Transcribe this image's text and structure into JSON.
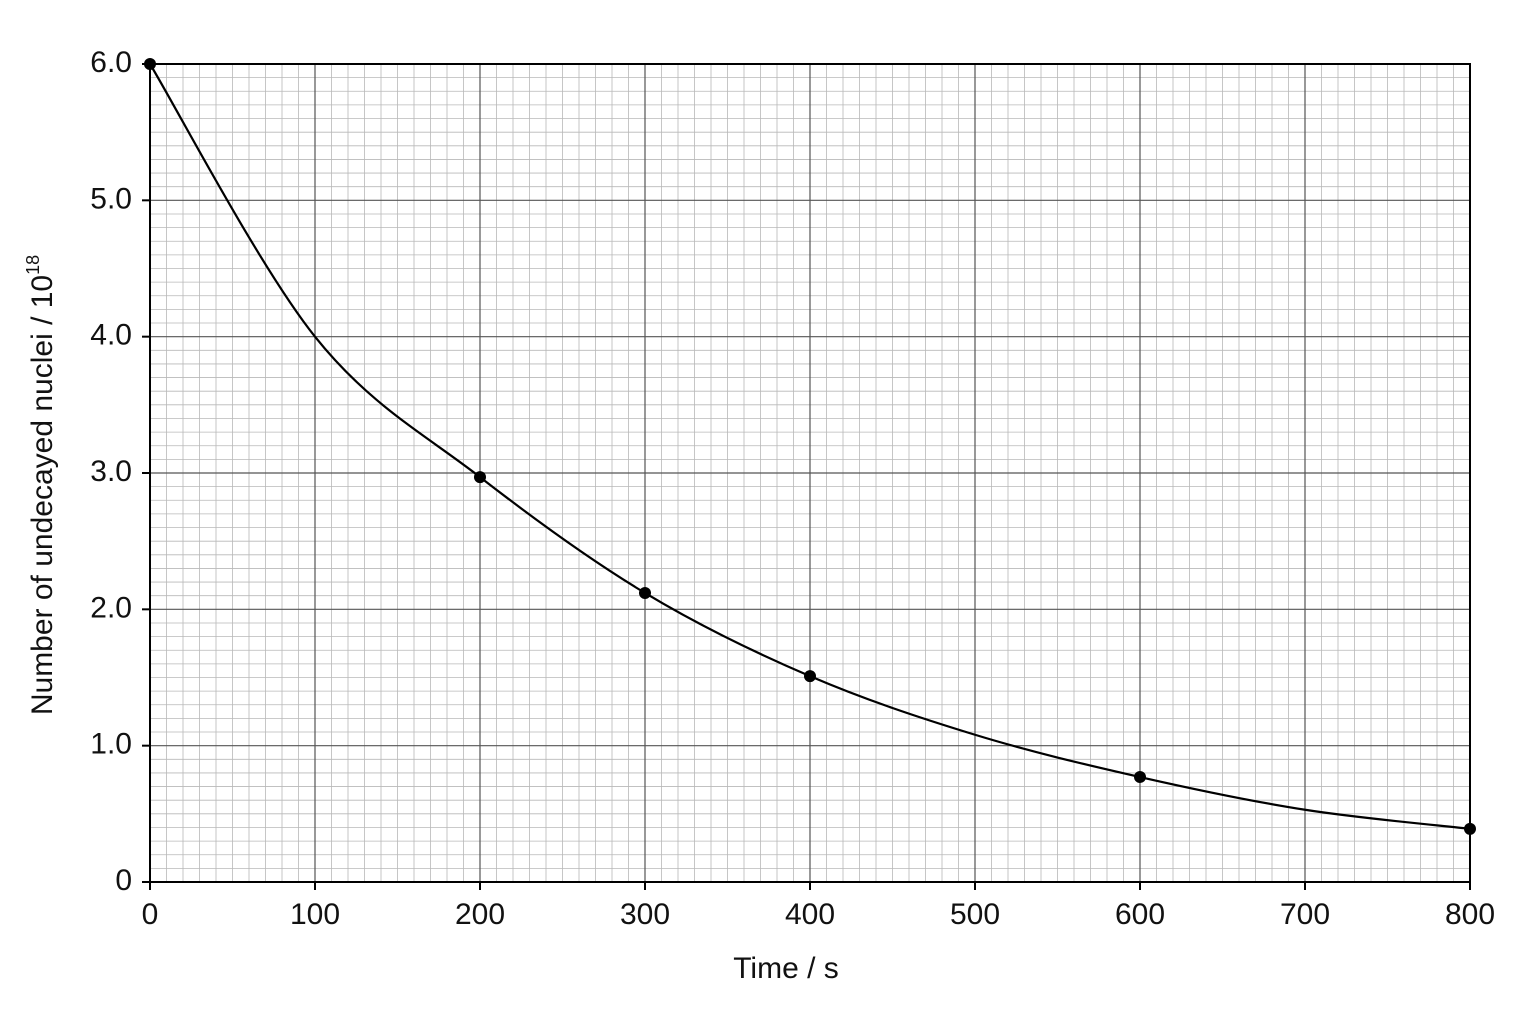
{
  "chart_data": {
    "type": "scatter",
    "xlabel": "Time / s",
    "ylabel": "Number of undecayed nuclei / 10",
    "ylabel_superscript": "18",
    "x": [
      0,
      200,
      300,
      400,
      600,
      800
    ],
    "values": [
      6.0,
      2.97,
      2.12,
      1.51,
      0.77,
      0.39
    ],
    "color": "#000000",
    "curve": {
      "x": [
        0,
        100,
        200,
        300,
        400,
        500,
        600,
        700,
        800
      ],
      "values": [
        6.0,
        4.0,
        2.97,
        2.12,
        1.51,
        1.08,
        0.77,
        0.53,
        0.39
      ]
    },
    "xlim": [
      0,
      800
    ],
    "xticks": [
      0,
      100,
      200,
      300,
      400,
      500,
      600,
      700,
      800
    ],
    "ylim": [
      0,
      6
    ],
    "yticks": [
      0,
      {
        "value": 1,
        "label": "1.0"
      },
      {
        "value": 2,
        "label": "2.0"
      },
      {
        "value": 3,
        "label": "3.0"
      },
      {
        "value": 4,
        "label": "4.0"
      },
      {
        "value": 5,
        "label": "5.0"
      },
      {
        "value": 6,
        "label": "6.0"
      }
    ],
    "grid": true,
    "minor_grid_divisions": 10
  }
}
